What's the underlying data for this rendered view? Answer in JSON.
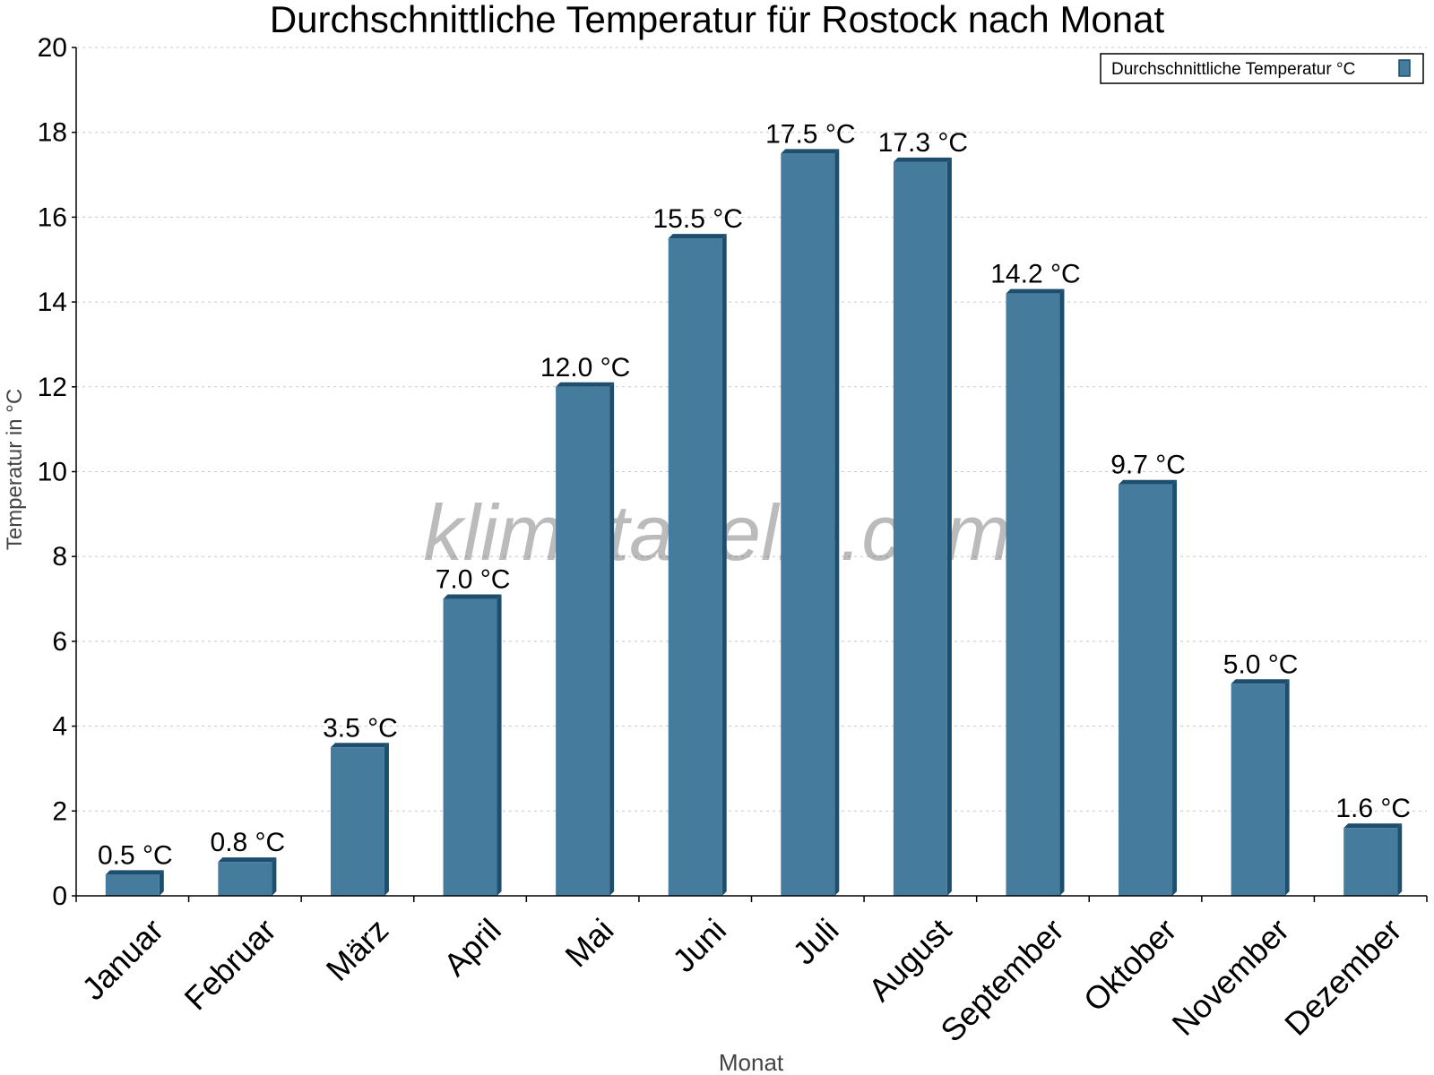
{
  "chart_data": {
    "type": "bar",
    "title": "Durchschnittliche Temperatur für Rostock nach Monat",
    "xlabel": "Monat",
    "ylabel": "Temperatur in °C",
    "categories": [
      "Januar",
      "Februar",
      "März",
      "April",
      "Mai",
      "Juni",
      "Juli",
      "August",
      "September",
      "Oktober",
      "November",
      "Dezember"
    ],
    "series": [
      {
        "name": "Durchschnittliche Temperatur °C",
        "values": [
          0.5,
          0.8,
          3.5,
          7.0,
          12.0,
          15.5,
          17.5,
          17.3,
          14.2,
          9.7,
          5.0,
          1.6
        ],
        "color": "#457b9d"
      }
    ],
    "data_labels": [
      "0.5 °C",
      "0.8 °C",
      "3.5 °C",
      "7.0 °C",
      "12.0 °C",
      "15.5 °C",
      "17.5 °C",
      "17.3 °C",
      "14.2 °C",
      "9.7 °C",
      "5.0 °C",
      "1.6 °C"
    ],
    "ylim": [
      0,
      20
    ],
    "yticks": [
      0,
      2,
      4,
      6,
      8,
      10,
      12,
      14,
      16,
      18,
      20
    ],
    "grid": true,
    "legend_position": "top-right"
  },
  "watermark": "klimatabelle.com",
  "colors": {
    "bar": "#457b9d",
    "bar_side": "#1d4e6e",
    "grid": "#c8c8c8"
  }
}
